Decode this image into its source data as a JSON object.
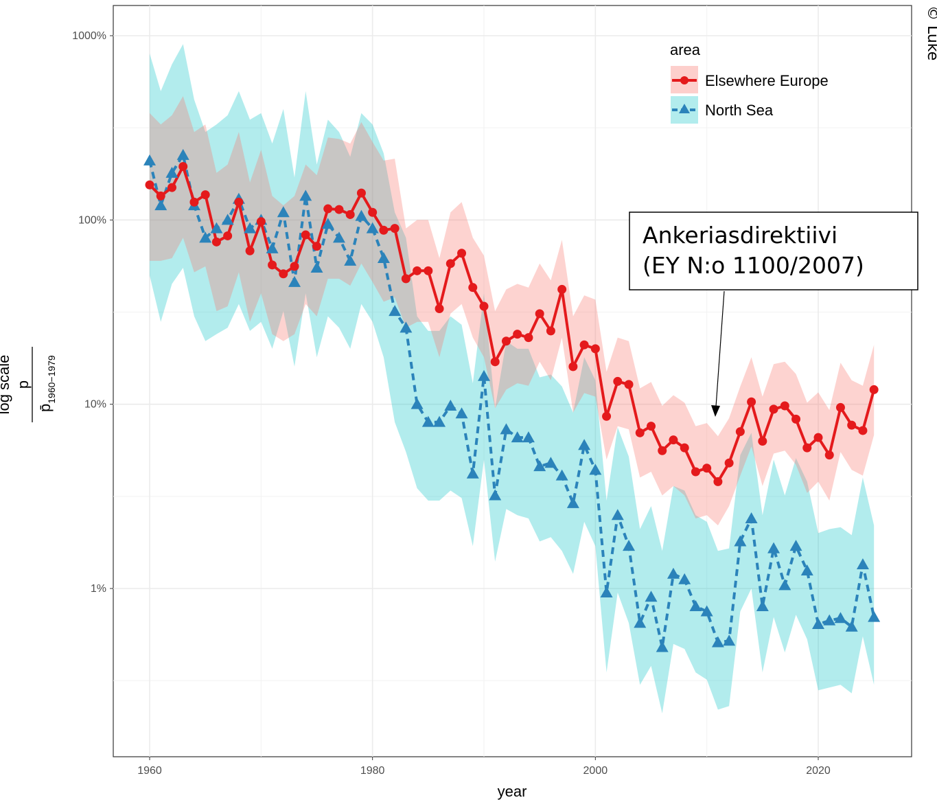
{
  "chart_data": {
    "type": "line",
    "title": "",
    "xlabel": "year",
    "ylabel_main": "log scale",
    "ylabel_numerator": "p",
    "ylabel_denominator": "p̄",
    "ylabel_denominator_sub": "1960−1979",
    "xlim": [
      1959,
      2026
    ],
    "xticks": [
      1960,
      1980,
      2000,
      2020
    ],
    "xtick_labels": [
      "1960",
      "1980",
      "2000",
      "2020"
    ],
    "ylim_percent": [
      0.17,
      1400
    ],
    "yscale": "log",
    "yticks": [
      1,
      10,
      100,
      1000
    ],
    "ytick_labels": [
      "1%",
      "10%",
      "100%",
      "1000%"
    ],
    "grid": true,
    "legend": {
      "title": "area",
      "position": "top-right",
      "entries": [
        "Elsewhere Europe",
        "North Sea"
      ]
    },
    "series": [
      {
        "name": "Elsewhere Europe",
        "color": "#e41a1c",
        "band_color": "#f8766d",
        "marker": "circle",
        "line_style": "solid",
        "x": [
          1960,
          1961,
          1962,
          1963,
          1964,
          1965,
          1966,
          1967,
          1968,
          1969,
          1970,
          1971,
          1972,
          1973,
          1974,
          1975,
          1976,
          1977,
          1978,
          1979,
          1980,
          1981,
          1982,
          1983,
          1984,
          1985,
          1986,
          1987,
          1988,
          1989,
          1990,
          1991,
          1992,
          1993,
          1994,
          1995,
          1996,
          1997,
          1998,
          1999,
          2000,
          2001,
          2002,
          2003,
          2004,
          2005,
          2006,
          2007,
          2008,
          2009,
          2010,
          2011,
          2012,
          2013,
          2014,
          2015,
          2016,
          2017,
          2018,
          2019,
          2020,
          2021,
          2022,
          2023,
          2024,
          2025
        ],
        "y": [
          155,
          135,
          150,
          195,
          125,
          137,
          76,
          82,
          125,
          68,
          98,
          57,
          51,
          56,
          83,
          72,
          115,
          114,
          107,
          140,
          110,
          88,
          90,
          48,
          53,
          53,
          33,
          58,
          66,
          43,
          34,
          17,
          22,
          24,
          23,
          31,
          25,
          42,
          16,
          21,
          20,
          8.6,
          13.3,
          12.8,
          7.0,
          7.6,
          5.6,
          6.4,
          5.8,
          4.3,
          4.5,
          3.8,
          4.8,
          7.1,
          10.3,
          6.3,
          9.4,
          9.8,
          8.3,
          5.8,
          6.6,
          5.3,
          9.6,
          7.7,
          7.2,
          12.0
        ],
        "lower": [
          60,
          60,
          62,
          80,
          52,
          56,
          32,
          34,
          52,
          28,
          40,
          24,
          22,
          24,
          35,
          30,
          48,
          48,
          44,
          58,
          46,
          36,
          38,
          26,
          28,
          28,
          18,
          31,
          35,
          23,
          18,
          9.5,
          12,
          13,
          12.6,
          17,
          13.5,
          23,
          9,
          11.5,
          11,
          5.0,
          7.6,
          7.3,
          4.0,
          4.3,
          3.2,
          3.6,
          3.2,
          2.4,
          2.5,
          2.2,
          2.8,
          4.1,
          5.9,
          3.6,
          5.4,
          5.6,
          4.7,
          3.3,
          3.8,
          3.0,
          5.5,
          4.4,
          4.1,
          6.8
        ],
        "upper": [
          380,
          330,
          370,
          470,
          300,
          330,
          180,
          200,
          300,
          160,
          240,
          135,
          120,
          135,
          200,
          175,
          280,
          275,
          260,
          340,
          265,
          210,
          215,
          90,
          100,
          100,
          62,
          110,
          125,
          80,
          64,
          32,
          42,
          45,
          43,
          58,
          47,
          78,
          30,
          39,
          37,
          15,
          23,
          22,
          12.2,
          13.2,
          9.8,
          11.2,
          10.2,
          7.6,
          7.9,
          6.7,
          8.4,
          12.5,
          18,
          11,
          16.5,
          17,
          14.6,
          10.2,
          11.6,
          9.3,
          16.8,
          13.5,
          12.6,
          21
        ]
      },
      {
        "name": "North Sea",
        "color": "#2b83ba",
        "band_color": "#00bfc4",
        "marker": "triangle",
        "line_style": "dashed",
        "x": [
          1960,
          1961,
          1962,
          1963,
          1964,
          1965,
          1966,
          1967,
          1968,
          1969,
          1970,
          1971,
          1972,
          1973,
          1974,
          1975,
          1976,
          1977,
          1978,
          1979,
          1980,
          1981,
          1982,
          1983,
          1984,
          1985,
          1986,
          1987,
          1988,
          1989,
          1990,
          1991,
          1992,
          1993,
          1994,
          1995,
          1996,
          1997,
          1998,
          1999,
          2000,
          2001,
          2002,
          2003,
          2004,
          2005,
          2006,
          2007,
          2008,
          2009,
          2010,
          2011,
          2012,
          2013,
          2014,
          2015,
          2016,
          2017,
          2018,
          2019,
          2020,
          2021,
          2022,
          2023,
          2024,
          2025
        ],
        "y": [
          210,
          120,
          180,
          225,
          120,
          80,
          90,
          100,
          130,
          90,
          100,
          70,
          110,
          46,
          135,
          55,
          95,
          80,
          60,
          105,
          90,
          62,
          32,
          26,
          10,
          8,
          8,
          9.8,
          8.9,
          4.2,
          14.2,
          3.2,
          7.3,
          6.6,
          6.6,
          4.6,
          4.8,
          4.1,
          2.9,
          6.0,
          4.4,
          0.95,
          2.5,
          1.7,
          0.65,
          0.9,
          0.48,
          1.2,
          1.12,
          0.8,
          0.75,
          0.51,
          0.52,
          1.8,
          2.4,
          0.8,
          1.65,
          1.04,
          1.7,
          1.25,
          0.64,
          0.67,
          0.69,
          0.62,
          1.35,
          0.7
        ],
        "lower": [
          50,
          28,
          45,
          55,
          30,
          22,
          24,
          26,
          35,
          25,
          28,
          20,
          32,
          16,
          40,
          18,
          30,
          26,
          20,
          35,
          28,
          18,
          8,
          5.5,
          3.5,
          3.0,
          3.0,
          3.4,
          3.1,
          1.7,
          5,
          1.4,
          2.7,
          2.5,
          2.4,
          1.8,
          1.9,
          1.6,
          1.2,
          2.3,
          1.7,
          0.35,
          0.95,
          0.65,
          0.3,
          0.38,
          0.21,
          0.5,
          0.47,
          0.35,
          0.32,
          0.22,
          0.23,
          0.75,
          1.0,
          0.35,
          0.7,
          0.45,
          0.72,
          0.53,
          0.28,
          0.29,
          0.3,
          0.27,
          0.55,
          0.3
        ],
        "upper": [
          800,
          500,
          700,
          900,
          450,
          300,
          330,
          370,
          500,
          350,
          380,
          260,
          400,
          170,
          500,
          200,
          350,
          300,
          220,
          380,
          330,
          230,
          110,
          80,
          30,
          25,
          25,
          30,
          27,
          13,
          40,
          9.5,
          22,
          20,
          20,
          14,
          14.5,
          12.5,
          9,
          18,
          13.5,
          3.0,
          7.5,
          5.2,
          2.1,
          2.8,
          1.6,
          3.6,
          3.4,
          2.5,
          2.3,
          1.6,
          1.65,
          5.3,
          7,
          2.5,
          5,
          3.2,
          5.1,
          3.8,
          2.0,
          2.1,
          2.15,
          1.95,
          4.0,
          2.2
        ]
      }
    ],
    "annotation": {
      "line1": "Ankeriasdirektiivi",
      "line2": "(EY N:o 1100/2007)",
      "points_to_year": 2011
    }
  },
  "credit": "© Luke"
}
